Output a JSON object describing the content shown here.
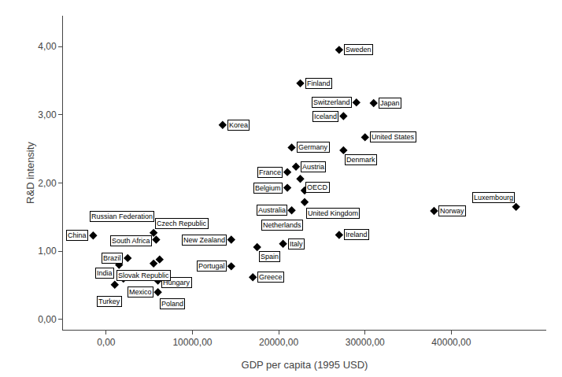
{
  "chart_data": {
    "type": "scatter",
    "xlabel": "GDP per capita (1995 USD)",
    "ylabel": "R&D intensity",
    "x": [
      27000,
      22500,
      31000,
      29000,
      27500,
      30000,
      13500,
      21500,
      27500,
      22000,
      21000,
      22500,
      21000,
      23000,
      23000,
      21500,
      38000,
      47500,
      27000,
      20500,
      14500,
      5500,
      17500,
      14500,
      17000,
      5800,
      6200,
      5500,
      6000,
      -1500,
      2500,
      1500,
      2000,
      1000,
      6000
    ],
    "values": [
      3.95,
      3.46,
      3.17,
      3.18,
      2.98,
      2.67,
      2.85,
      2.52,
      2.48,
      2.24,
      2.16,
      2.06,
      1.93,
      1.89,
      1.72,
      1.6,
      1.59,
      1.65,
      1.24,
      1.11,
      1.17,
      1.27,
      1.06,
      0.78,
      0.62,
      1.17,
      0.88,
      0.82,
      0.57,
      1.23,
      0.9,
      0.8,
      0.6,
      0.51,
      0.4
    ],
    "labels": [
      "Sweden",
      "Finland",
      "Japan",
      "Switzerland",
      "Iceland",
      "United States",
      "Korea",
      "Germany",
      "Denmark",
      "Austria",
      "France",
      "OECD",
      "Belgium",
      "United Kingdom",
      "Netherlands",
      "Australia",
      "Norway",
      "Luxembourg",
      "Ireland",
      "Italy",
      "New Zealand",
      "Czech Republic",
      "Spain",
      "Portugal",
      "Greece",
      "Russian Federation",
      "Hungary",
      "South Africa",
      "Poland",
      "China",
      "Brazil",
      "India",
      "Turkey",
      "Slovak Republic",
      "Mexico"
    ],
    "color": "#000000",
    "marker": "diamond",
    "xlim": [
      -5000,
      51000
    ],
    "ylim": [
      -0.15,
      4.45
    ],
    "xticks": [
      {
        "value": 0,
        "label": "0,00"
      },
      {
        "value": 10000,
        "label": "10000,00"
      },
      {
        "value": 20000,
        "label": "20000,00"
      },
      {
        "value": 30000,
        "label": "30000,00"
      },
      {
        "value": 40000,
        "label": "40000,00"
      }
    ],
    "yticks": [
      {
        "value": 0.0,
        "label": "0,00"
      },
      {
        "value": 1.0,
        "label": "1,00"
      },
      {
        "value": 2.0,
        "label": "2,00"
      },
      {
        "value": 3.0,
        "label": "3,00"
      },
      {
        "value": 4.0,
        "label": "4,00"
      }
    ],
    "grid": false
  }
}
